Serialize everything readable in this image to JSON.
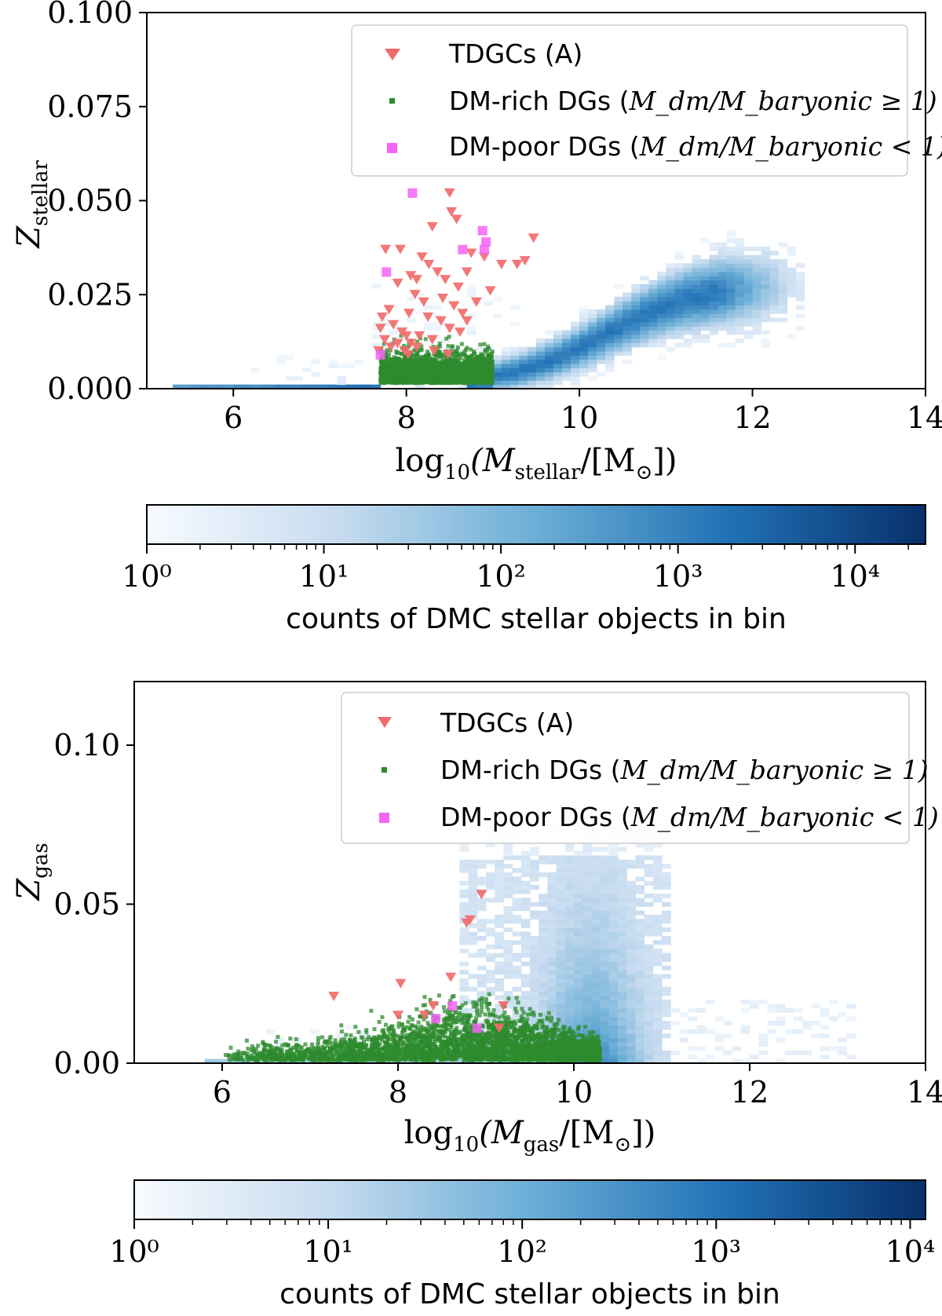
{
  "chart_data": [
    {
      "type": "scatter",
      "panel": "top",
      "background": "2d histogram (blue, log color scale)",
      "xlabel_tex": "log10(M_stellar/[M_sun])",
      "xlabel": {
        "pre": "log",
        "pre_sub": "10",
        "mid": "(M",
        "mid_sub": "stellar",
        "post": "/[M",
        "post_sub": "⊙",
        "end": "])"
      },
      "ylabel": {
        "main": "Z",
        "sub": "stellar"
      },
      "xlim": [
        5,
        14
      ],
      "ylim": [
        0,
        0.1
      ],
      "xticks": [
        "6",
        "8",
        "10",
        "12",
        "14"
      ],
      "yticks": [
        "0.000",
        "0.025",
        "0.050",
        "0.075",
        "0.100"
      ],
      "legend": {
        "position": "top-right",
        "entries": [
          {
            "marker": "triangle-down",
            "color": "#f26b6b",
            "text": "TDGCs (A)",
            "math": ""
          },
          {
            "marker": "square-small",
            "color": "#2e8b2e",
            "text": "DM-rich DGs (",
            "math": "M_dm/M_baryonic ≥ 1)"
          },
          {
            "marker": "square",
            "color": "#f564f5",
            "text": "DM-poor DGs (",
            "math": "M_dm/M_baryonic < 1)"
          }
        ]
      },
      "series": [
        {
          "name": "TDGCs (A)",
          "marker": "triangle-down",
          "color": "#f26b6b",
          "x": [
            8.5,
            8.52,
            8.3,
            8.58,
            7.76,
            7.93,
            8.18,
            8.75,
            9.47,
            8.26,
            8.7,
            8.9,
            9.1,
            9.28,
            9.37,
            8.05,
            7.9,
            8.12,
            8.36,
            8.45,
            8.6,
            8.81,
            8.97,
            8.1,
            8.42,
            8.2,
            8.55,
            8.65,
            7.8,
            7.72,
            8.03,
            8.25,
            8.4,
            8.5,
            7.85,
            7.95,
            7.7,
            8.0,
            8.15,
            8.3,
            7.75,
            7.9,
            8.05,
            7.82,
            7.98,
            8.12,
            8.32,
            8.48,
            8.02,
            7.68,
            8.7,
            8.62
          ],
          "y": [
            0.052,
            0.047,
            0.043,
            0.045,
            0.037,
            0.037,
            0.035,
            0.036,
            0.04,
            0.033,
            0.031,
            0.035,
            0.033,
            0.033,
            0.034,
            0.03,
            0.028,
            0.029,
            0.031,
            0.029,
            0.027,
            0.023,
            0.026,
            0.025,
            0.024,
            0.023,
            0.022,
            0.02,
            0.021,
            0.019,
            0.02,
            0.019,
            0.018,
            0.016,
            0.017,
            0.015,
            0.016,
            0.014,
            0.014,
            0.013,
            0.013,
            0.012,
            0.012,
            0.011,
            0.01,
            0.011,
            0.01,
            0.009,
            0.009,
            0.01,
            0.018,
            0.015
          ]
        },
        {
          "name": "DM-rich DGs",
          "marker": "square-small",
          "color": "#2e8b2e",
          "note": "dense cloud spanning log M* 7.7–9.0, Z 0.000–0.012"
        },
        {
          "name": "DM-poor DGs",
          "marker": "square",
          "color": "#f564f5",
          "x": [
            8.07,
            8.88,
            8.92,
            8.9,
            8.65,
            7.77,
            7.7
          ],
          "y": [
            0.052,
            0.042,
            0.039,
            0.037,
            0.037,
            0.031,
            0.009
          ]
        }
      ],
      "colorbar": {
        "label": "counts of DMC stellar objects in bin",
        "ticks": [
          "10⁰",
          "10¹",
          "10²",
          "10³",
          "10⁴"
        ],
        "range": [
          1,
          25000
        ]
      }
    },
    {
      "type": "scatter",
      "panel": "bottom",
      "background": "2d histogram (blue, log color scale)",
      "xlabel": {
        "pre": "log",
        "pre_sub": "10",
        "mid": "(M",
        "mid_sub": "gas",
        "post": "/[M",
        "post_sub": "⊙",
        "end": "])"
      },
      "ylabel": {
        "main": "Z",
        "sub": "gas"
      },
      "xlim": [
        5,
        14
      ],
      "ylim": [
        0,
        0.12
      ],
      "xticks": [
        "6",
        "8",
        "10",
        "12",
        "14"
      ],
      "yticks": [
        "0.00",
        "0.05",
        "0.10"
      ],
      "legend": {
        "position": "top-right",
        "entries": [
          {
            "marker": "triangle-down",
            "color": "#f26b6b",
            "text": "TDGCs (A)",
            "math": ""
          },
          {
            "marker": "square-small",
            "color": "#2e8b2e",
            "text": "DM-rich DGs (",
            "math": "M_dm/M_baryonic ≥ 1)"
          },
          {
            "marker": "square",
            "color": "#f564f5",
            "text": "DM-poor DGs (",
            "math": "M_dm/M_baryonic < 1)"
          }
        ]
      },
      "series": [
        {
          "name": "TDGCs (A)",
          "marker": "triangle-down",
          "color": "#f26b6b",
          "x": [
            8.95,
            8.78,
            8.82,
            8.6,
            8.03,
            7.27,
            8.3,
            8.0,
            8.4,
            9.2,
            9.15
          ],
          "y": [
            0.053,
            0.044,
            0.045,
            0.027,
            0.025,
            0.021,
            0.015,
            0.015,
            0.018,
            0.018,
            0.011
          ]
        },
        {
          "name": "DM-rich DGs",
          "marker": "square-small",
          "color": "#2e8b2e",
          "note": "dense cloud spanning log Mgas 6.0–10.3, Z 0.000–0.020"
        },
        {
          "name": "DM-poor DGs",
          "marker": "square",
          "color": "#f564f5",
          "x": [
            8.62,
            8.43,
            8.9
          ],
          "y": [
            0.018,
            0.014,
            0.011
          ]
        }
      ],
      "colorbar": {
        "label": "counts of DMC stellar objects in bin",
        "ticks": [
          "10⁰",
          "10¹",
          "10²",
          "10³",
          "10⁴"
        ],
        "range": [
          1,
          12000
        ]
      }
    }
  ]
}
